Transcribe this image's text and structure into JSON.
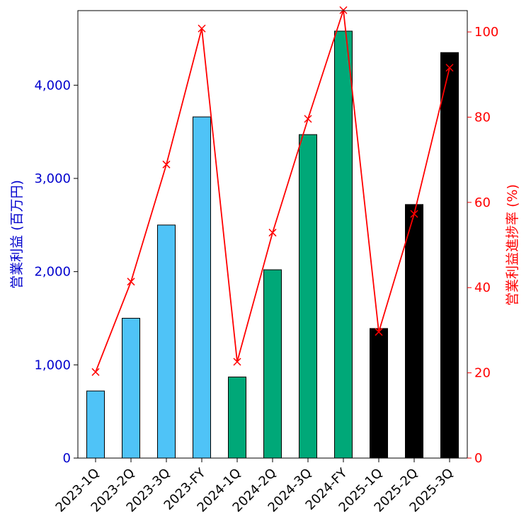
{
  "chart_data": {
    "type": "bar",
    "title": "",
    "categories": [
      "2023-1Q",
      "2023-2Q",
      "2023-3Q",
      "2023-FY",
      "2024-1Q",
      "2024-2Q",
      "2024-3Q",
      "2024-FY",
      "2025-1Q",
      "2025-2Q",
      "2025-3Q"
    ],
    "bar_colors": [
      "#4fc3f7",
      "#4fc3f7",
      "#4fc3f7",
      "#4fc3f7",
      "#00a878",
      "#00a878",
      "#00a878",
      "#00a878",
      "#000000",
      "#000000",
      "#000000"
    ],
    "series": [
      {
        "type": "bar",
        "axis": "left",
        "values": [
          720,
          1500,
          2500,
          3660,
          870,
          2020,
          3470,
          4580,
          1390,
          2720,
          4350
        ]
      },
      {
        "type": "line",
        "axis": "right",
        "marker": "x",
        "color": "#ff0000",
        "values": [
          20.2,
          41.4,
          68.9,
          100.8,
          22.6,
          52.9,
          79.6,
          105.1,
          29.6,
          57.3,
          91.6
        ]
      }
    ],
    "ylabel": "営業利益 (百万円)",
    "ylabel_color": "#0000cd",
    "y2label": "営業利益進捗率 (%)",
    "y2label_color": "#ff0000",
    "ylim": [
      0,
      4800
    ],
    "y2lim": [
      0,
      105
    ],
    "yticks": [
      0,
      1000,
      2000,
      3000,
      4000
    ],
    "ytick_labels": [
      "0",
      "1,000",
      "2,000",
      "3,000",
      "4,000"
    ],
    "y2ticks": [
      0,
      20,
      40,
      60,
      80,
      100
    ],
    "y2tick_labels": [
      "0",
      "20",
      "40",
      "60",
      "80",
      "100"
    ],
    "grid": false,
    "legend": false
  }
}
